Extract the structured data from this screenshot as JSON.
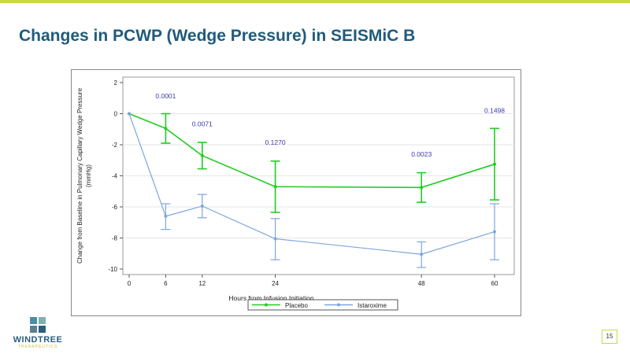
{
  "slide": {
    "title": "Changes in PCWP (Wedge Pressure) in SEISMiC B",
    "page_number": "15",
    "logo": {
      "name": "WINDTREE",
      "tagline": "THERAPEUTICS"
    },
    "colors": {
      "accent": "#c8d84a",
      "title": "#1f5b7c"
    }
  },
  "chart_data": {
    "type": "line",
    "title": "",
    "xlabel": "Hours from Infusion Initiation",
    "ylabel": "Change from Baseline in Pulmonary Capillary Wedge Pressure (mmHg)",
    "ylabel_lines": [
      "Change from Baseline in Pulmonary Capillary Wedge Pressure",
      "(mmHg)"
    ],
    "x": [
      0,
      6,
      12,
      24,
      48,
      60
    ],
    "xticks": [
      "0",
      "6",
      "12",
      "24",
      "48",
      "60"
    ],
    "ylim": [
      -10,
      2
    ],
    "xlim": [
      0,
      60
    ],
    "yticks": [
      "2",
      "0",
      "-2",
      "-4",
      "-6",
      "-8",
      "-10"
    ],
    "grid": "horizontal",
    "legend_position": "bottom",
    "series": [
      {
        "name": "Placebo",
        "color": "#22cc22",
        "values": [
          0,
          -0.95,
          -2.7,
          -4.7,
          -4.75,
          -3.25
        ],
        "err_high": [
          0,
          0,
          -1.85,
          -3.05,
          -3.8,
          -0.95
        ],
        "err_low": [
          0,
          -1.9,
          -3.55,
          -6.35,
          -5.7,
          -5.55
        ]
      },
      {
        "name": "Istaroxime",
        "color": "#7ea6de",
        "values": [
          0,
          -6.6,
          -5.95,
          -8.05,
          -9.05,
          -7.6
        ],
        "err_high": [
          0,
          -5.8,
          -5.2,
          -6.75,
          -8.25,
          -5.8
        ],
        "err_low": [
          0,
          -7.45,
          -6.7,
          -9.4,
          -9.9,
          -9.4
        ]
      }
    ],
    "annotations": [
      {
        "text": "0.0001",
        "x": 6,
        "y": 1.0
      },
      {
        "text": "0.0071",
        "x": 12,
        "y": -0.8
      },
      {
        "text": "0.1270",
        "x": 24,
        "y": -2.0
      },
      {
        "text": "0.0023",
        "x": 48,
        "y": -2.75
      },
      {
        "text": "0.1498",
        "x": 60,
        "y": 0.05
      }
    ],
    "annotation_color": "#3a3aa8"
  }
}
